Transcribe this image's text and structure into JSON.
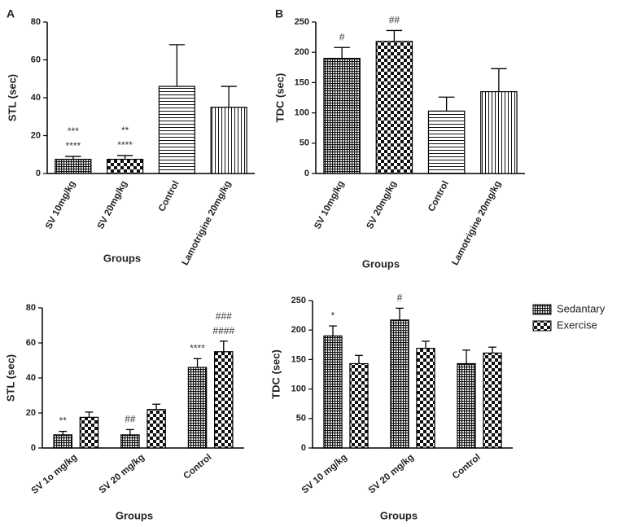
{
  "chart_data": [
    {
      "type": "bar",
      "panel_label": "A",
      "ylabel": "STL (sec)",
      "xlabel": "Groups",
      "categories": [
        "SV 10mg/kg",
        "SV 20mg/kg",
        "Control",
        "Lamotrigine 20mg/kg"
      ],
      "values": [
        7.5,
        7.5,
        46,
        35
      ],
      "errors": [
        1.5,
        2,
        22,
        11
      ],
      "patterns": [
        "grid",
        "checker",
        "hlines",
        "vlines"
      ],
      "annotations": [
        [
          "***",
          "****"
        ],
        [
          "**",
          "****"
        ],
        null,
        null
      ],
      "ylim": [
        0,
        80
      ],
      "yticks": [
        0,
        20,
        40,
        60,
        80
      ]
    },
    {
      "type": "bar",
      "panel_label": "B",
      "ylabel": "TDC (sec)",
      "xlabel": "Groups",
      "categories": [
        "SV 10mg/kg",
        "SV 20mg/kg",
        "Control",
        "Lamotrigine 20mg/kg"
      ],
      "values": [
        190,
        218,
        103,
        135
      ],
      "errors": [
        18,
        18,
        23,
        38
      ],
      "patterns": [
        "grid",
        "checker",
        "hlines",
        "vlines"
      ],
      "annotations": [
        [
          "#"
        ],
        [
          "##"
        ],
        null,
        null
      ],
      "ylim": [
        0,
        250
      ],
      "yticks": [
        0,
        50,
        100,
        150,
        200,
        250
      ]
    },
    {
      "type": "grouped_bar",
      "ylabel": "STL (sec)",
      "xlabel": "Groups",
      "categories": [
        "SV 1o mg/kg",
        "SV 20 mg/kg",
        "Control"
      ],
      "series": [
        {
          "name": "Sedantary",
          "pattern": "grid",
          "values": [
            7.5,
            7.5,
            46
          ],
          "errors": [
            2,
            3,
            5
          ],
          "annotations": [
            [
              "**"
            ],
            [
              "##"
            ],
            [
              "****"
            ]
          ]
        },
        {
          "name": "Exercise",
          "pattern": "checker",
          "values": [
            17.5,
            22,
            55
          ],
          "errors": [
            3,
            3,
            6
          ],
          "annotations": [
            null,
            null,
            [
              "###",
              "####"
            ]
          ]
        }
      ],
      "ylim": [
        0,
        80
      ],
      "yticks": [
        0,
        20,
        40,
        60,
        80
      ]
    },
    {
      "type": "grouped_bar",
      "ylabel": "TDC (sec)",
      "xlabel": "Groups",
      "categories": [
        "SV 10 mg/kg",
        "SV 20 mg/kg",
        "Control"
      ],
      "series": [
        {
          "name": "Sedantary",
          "pattern": "grid",
          "values": [
            190,
            217,
            143
          ],
          "errors": [
            17,
            20,
            23
          ],
          "annotations": [
            [
              "*"
            ],
            [
              "#"
            ],
            null
          ]
        },
        {
          "name": "Exercise",
          "pattern": "checker",
          "values": [
            143,
            169,
            161
          ],
          "errors": [
            14,
            12,
            10
          ],
          "annotations": [
            null,
            null,
            null
          ]
        }
      ],
      "ylim": [
        0,
        250
      ],
      "yticks": [
        0,
        50,
        100,
        150,
        200,
        250
      ],
      "legend": "right"
    }
  ]
}
